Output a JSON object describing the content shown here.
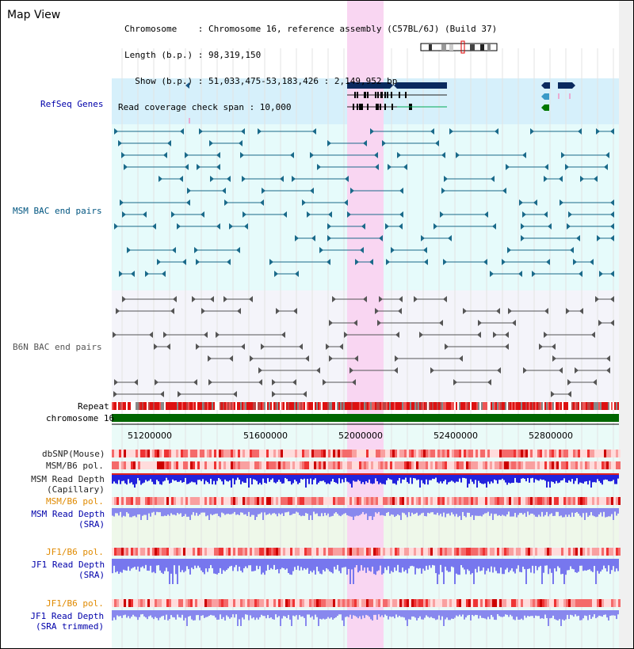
{
  "page": {
    "title": "Map View"
  },
  "header": {
    "chromosome_line": "Chromosome    : Chromosome 16, reference assembly (C57BL/6J) (Build 37)",
    "length_line": "Length (b.p.) : 98,319,150",
    "show_line": "  Show (b.p.) : 51,033,475-53,183,426 : 2,149,952 bp",
    "coverage_line": "Read coverage check span : 10,000"
  },
  "tracks": {
    "refseq": "RefSeq Genes",
    "msm_bac": "MSM BAC end pairs",
    "b6n_bac": "B6N BAC end pairs",
    "repeat": "Repeat",
    "chromosome": "chromosome 16",
    "dbsnp": "dbSNP(Mouse)",
    "msm_b6_pol_1": "MSM/B6 pol.",
    "msm_read_depth_cap_1": "MSM Read Depth",
    "msm_read_depth_cap_2": "(Capillary)",
    "msm_b6_pol_2": "MSM/B6 pol.",
    "msm_read_depth_sra_1": "MSM Read Depth",
    "msm_read_depth_sra_2": "(SRA)",
    "jf1_b6_pol_1": "JF1/B6 pol.",
    "jf1_read_depth_sra_1": "JF1 Read Depth",
    "jf1_read_depth_sra_2": "(SRA)",
    "jf1_b6_pol_2": "JF1/B6 pol.",
    "jf1_read_depth_trim_1": "JF1 Read Depth",
    "jf1_read_depth_trim_2": "(SRA trimmed)"
  },
  "axis": {
    "ticks": [
      "51200000",
      "51600000",
      "52000000",
      "52400000",
      "52800000"
    ]
  },
  "colors": {
    "highlight": "#f9d6f2",
    "refseq_bg": "#d6f0fb",
    "msm_bg": "#e6fbfb",
    "gene_dark": "#0a2a5e",
    "bac_teal": "#1a6a8a",
    "bac_grey": "#555555",
    "chromosome": "#006600",
    "depth_blue": "#2222dd",
    "depth_violet": "#8888ee"
  }
}
